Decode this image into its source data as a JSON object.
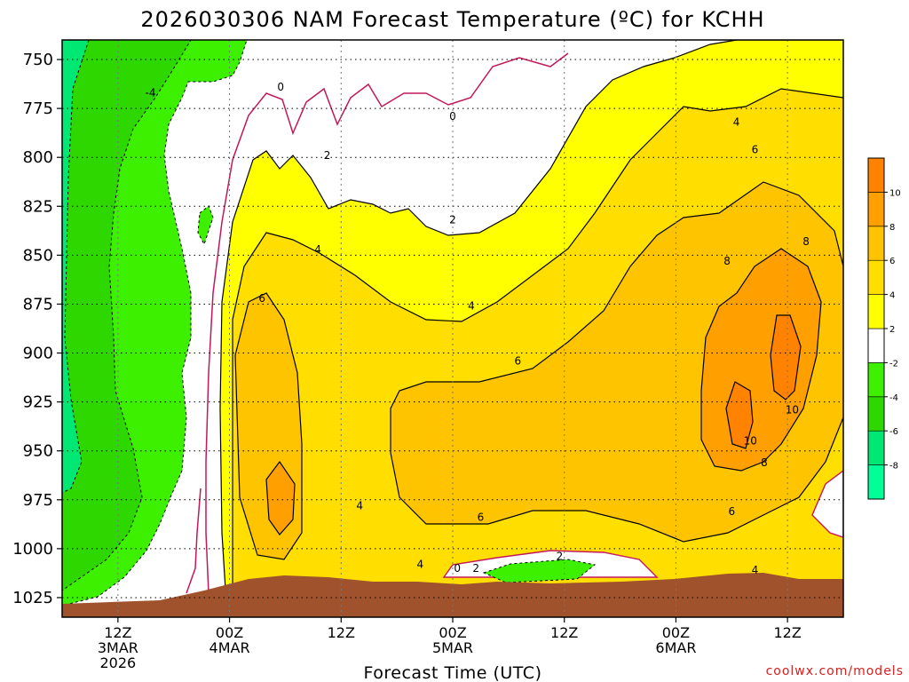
{
  "title": "2026030306 NAM Forecast Temperature (ºC) for KCHH",
  "xlabel": "Forecast Time (UTC)",
  "credit": "coolwx.com/models",
  "chart_data": {
    "type": "time-height contour",
    "title": "2026030306 NAM Forecast Temperature (ºC) for KCHH",
    "xlabel": "Forecast Time (UTC)",
    "ylabel": "",
    "y_axis": {
      "scale": "pressure (hPa), increasing downward",
      "range": [
        740,
        1035
      ],
      "ticks": [
        750,
        775,
        800,
        825,
        850,
        875,
        900,
        925,
        950,
        975,
        1000,
        1025
      ]
    },
    "x_axis": {
      "range_hours": [
        6,
        90
      ],
      "ticks": [
        {
          "hour": 12,
          "line1": "12Z",
          "line2": "3MAR",
          "line3": "2026"
        },
        {
          "hour": 24,
          "line1": "00Z",
          "line2": "4MAR",
          "line3": ""
        },
        {
          "hour": 36,
          "line1": "12Z",
          "line2": "",
          "line3": ""
        },
        {
          "hour": 48,
          "line1": "00Z",
          "line2": "5MAR",
          "line3": ""
        },
        {
          "hour": 60,
          "line1": "12Z",
          "line2": "",
          "line3": ""
        },
        {
          "hour": 72,
          "line1": "00Z",
          "line2": "6MAR",
          "line3": ""
        },
        {
          "hour": 84,
          "line1": "12Z",
          "line2": "",
          "line3": ""
        }
      ]
    },
    "grid": true,
    "colorbar": {
      "placement": "right",
      "levels": [
        -10,
        -8,
        -6,
        -4,
        -2,
        2,
        4,
        6,
        8,
        10,
        12
      ],
      "labels": [
        "-8",
        "-6",
        "-4",
        "-2",
        "2",
        "4",
        "6",
        "8",
        "10"
      ],
      "colors": [
        "#00ff99",
        "#00e873",
        "#2fd700",
        "#3df000",
        "#ffffff",
        "#ffff00",
        "#ffde00",
        "#ffc400",
        "#ffa000",
        "#ff8200"
      ]
    },
    "contour_labels": [
      {
        "value": "0",
        "hour": 29.5,
        "p": 764
      },
      {
        "value": "0",
        "hour": 48.0,
        "p": 779
      },
      {
        "value": "-4",
        "hour": 15.5,
        "p": 767
      },
      {
        "value": "2",
        "hour": 34.5,
        "p": 799
      },
      {
        "value": "2",
        "hour": 48.0,
        "p": 832
      },
      {
        "value": "4",
        "hour": 33.5,
        "p": 847
      },
      {
        "value": "4",
        "hour": 78.5,
        "p": 782
      },
      {
        "value": "4",
        "hour": 50.0,
        "p": 876
      },
      {
        "value": "4",
        "hour": 44.5,
        "p": 1008
      },
      {
        "value": "4",
        "hour": 38.0,
        "p": 978
      },
      {
        "value": "4",
        "hour": 80.5,
        "p": 1011
      },
      {
        "value": "6",
        "hour": 27.5,
        "p": 872
      },
      {
        "value": "6",
        "hour": 55.0,
        "p": 904
      },
      {
        "value": "6",
        "hour": 80.5,
        "p": 796
      },
      {
        "value": "6",
        "hour": 51.0,
        "p": 984
      },
      {
        "value": "6",
        "hour": 78.0,
        "p": 981
      },
      {
        "value": "8",
        "hour": 77.5,
        "p": 853
      },
      {
        "value": "8",
        "hour": 86.0,
        "p": 843
      },
      {
        "value": "8",
        "hour": 81.5,
        "p": 956
      },
      {
        "value": "10",
        "hour": 84.5,
        "p": 929
      },
      {
        "value": "10",
        "hour": 80.0,
        "p": 945
      },
      {
        "value": "0",
        "hour": 48.5,
        "p": 1010
      },
      {
        "value": "2",
        "hour": 50.5,
        "p": 1010
      },
      {
        "value": "2",
        "hour": 59.5,
        "p": 1004
      }
    ]
  }
}
